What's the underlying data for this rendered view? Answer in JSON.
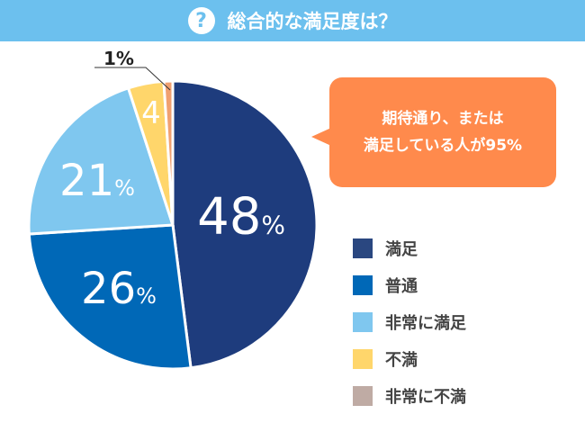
{
  "header": {
    "title": "総合的な満足度は？",
    "icon": "question-circle-icon"
  },
  "callout": {
    "line1": "期待通り、または",
    "line2": "満足している人が95%"
  },
  "chart_data": {
    "type": "pie",
    "title": "総合的な満足度は？",
    "categories": [
      "満足",
      "普通",
      "非常に満足",
      "不満",
      "非常に不満"
    ],
    "values": [
      48,
      26,
      21,
      4,
      1
    ],
    "labels": [
      "48",
      "26",
      "21",
      "4",
      "1%"
    ],
    "unit": "%",
    "colors": [
      "#1e3c7d",
      "#0068b7",
      "#7fc7ef",
      "#ffd66b",
      "#f0a070"
    ],
    "legend_colors": [
      "#2a4780",
      "#0068b7",
      "#7fc7ef",
      "#ffd66b",
      "#bfaba4"
    ],
    "legend_position": "right"
  }
}
